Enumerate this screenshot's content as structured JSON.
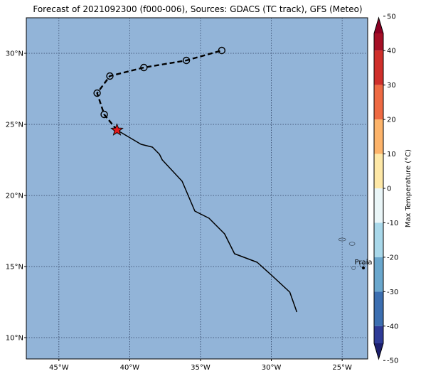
{
  "title": "Forecast of 2021092300 (f000-006), Sources: GDACS (TC track), GFS (Meteo)",
  "colors": {
    "ocean": "#92b4d8",
    "grid": "#1f2f4f",
    "track": "#000000",
    "current_marker": "#e31a1c"
  },
  "map_extent": {
    "lon_min": -47.3,
    "lon_max": -23.2,
    "lat_min": 8.5,
    "lat_max": 32.5
  },
  "lon_ticks": [
    {
      "value": -45,
      "label": "45°W"
    },
    {
      "value": -40,
      "label": "40°W"
    },
    {
      "value": -35,
      "label": "35°W"
    },
    {
      "value": -30,
      "label": "30°W"
    },
    {
      "value": -25,
      "label": "25°W"
    }
  ],
  "lat_ticks": [
    {
      "value": 10,
      "label": "10°N"
    },
    {
      "value": 15,
      "label": "15°N"
    },
    {
      "value": 20,
      "label": "20°N"
    },
    {
      "value": 25,
      "label": "25°N"
    },
    {
      "value": 30,
      "label": "30°N"
    }
  ],
  "track_history": [
    {
      "lon": -28.2,
      "lat": 11.8
    },
    {
      "lon": -28.7,
      "lat": 13.2
    },
    {
      "lon": -30.0,
      "lat": 14.4
    },
    {
      "lon": -31.0,
      "lat": 15.3
    },
    {
      "lon": -32.6,
      "lat": 15.9
    },
    {
      "lon": -33.3,
      "lat": 17.3
    },
    {
      "lon": -34.4,
      "lat": 18.4
    },
    {
      "lon": -35.4,
      "lat": 18.9
    },
    {
      "lon": -36.3,
      "lat": 21.0
    },
    {
      "lon": -37.7,
      "lat": 22.5
    },
    {
      "lon": -37.9,
      "lat": 22.9
    },
    {
      "lon": -38.4,
      "lat": 23.4
    },
    {
      "lon": -39.2,
      "lat": 23.6
    },
    {
      "lon": -40.9,
      "lat": 24.6
    }
  ],
  "current_position": {
    "lon": -40.9,
    "lat": 24.6
  },
  "forecast_track": [
    {
      "lon": -40.9,
      "lat": 24.6
    },
    {
      "lon": -41.8,
      "lat": 25.7
    },
    {
      "lon": -42.3,
      "lat": 27.2
    },
    {
      "lon": -41.4,
      "lat": 28.4
    },
    {
      "lon": -39.0,
      "lat": 29.0
    },
    {
      "lon": -36.0,
      "lat": 29.5
    },
    {
      "lon": -33.5,
      "lat": 30.2
    }
  ],
  "forecast_points": [
    {
      "lon": -41.8,
      "lat": 25.7
    },
    {
      "lon": -42.3,
      "lat": 27.2
    },
    {
      "lon": -41.4,
      "lat": 28.4
    },
    {
      "lon": -39.0,
      "lat": 29.0
    },
    {
      "lon": -36.0,
      "lat": 29.5
    },
    {
      "lon": -33.5,
      "lat": 30.2
    }
  ],
  "city": {
    "name": "Praia",
    "lon": -23.5,
    "lat": 14.9
  },
  "islands": [
    {
      "lon": -25.0,
      "lat": 16.9,
      "rx": 0.25,
      "ry": 0.1
    },
    {
      "lon": -24.3,
      "lat": 16.6,
      "rx": 0.2,
      "ry": 0.12
    },
    {
      "lon": -24.2,
      "lat": 14.9,
      "rx": 0.12,
      "ry": 0.12
    },
    {
      "lon": -23.6,
      "lat": 15.1,
      "rx": 0.15,
      "ry": 0.15
    }
  ],
  "colorbar": {
    "label": "Max Temperature (°C)",
    "min": -55,
    "max": 55,
    "ticks": [
      50,
      40,
      30,
      20,
      10,
      0,
      -10,
      -20,
      -30,
      -40,
      -50
    ],
    "bins": [
      {
        "from": 45,
        "to": 55,
        "color": "#8b0023"
      },
      {
        "from": 40,
        "to": 45,
        "color": "#a50f26"
      },
      {
        "from": 30,
        "to": 40,
        "color": "#cf2f2b"
      },
      {
        "from": 20,
        "to": 30,
        "color": "#ee6a43"
      },
      {
        "from": 10,
        "to": 20,
        "color": "#fdb46b"
      },
      {
        "from": 0,
        "to": 10,
        "color": "#fee8a7"
      },
      {
        "from": -10,
        "to": 0,
        "color": "#eaf6f8"
      },
      {
        "from": -20,
        "to": -10,
        "color": "#a9d8ea"
      },
      {
        "from": -30,
        "to": -20,
        "color": "#6aa7cd"
      },
      {
        "from": -40,
        "to": -30,
        "color": "#3c6fb1"
      },
      {
        "from": -45,
        "to": -40,
        "color": "#2e3b97"
      },
      {
        "from": -55,
        "to": -45,
        "color": "#1c1f6e"
      }
    ]
  }
}
